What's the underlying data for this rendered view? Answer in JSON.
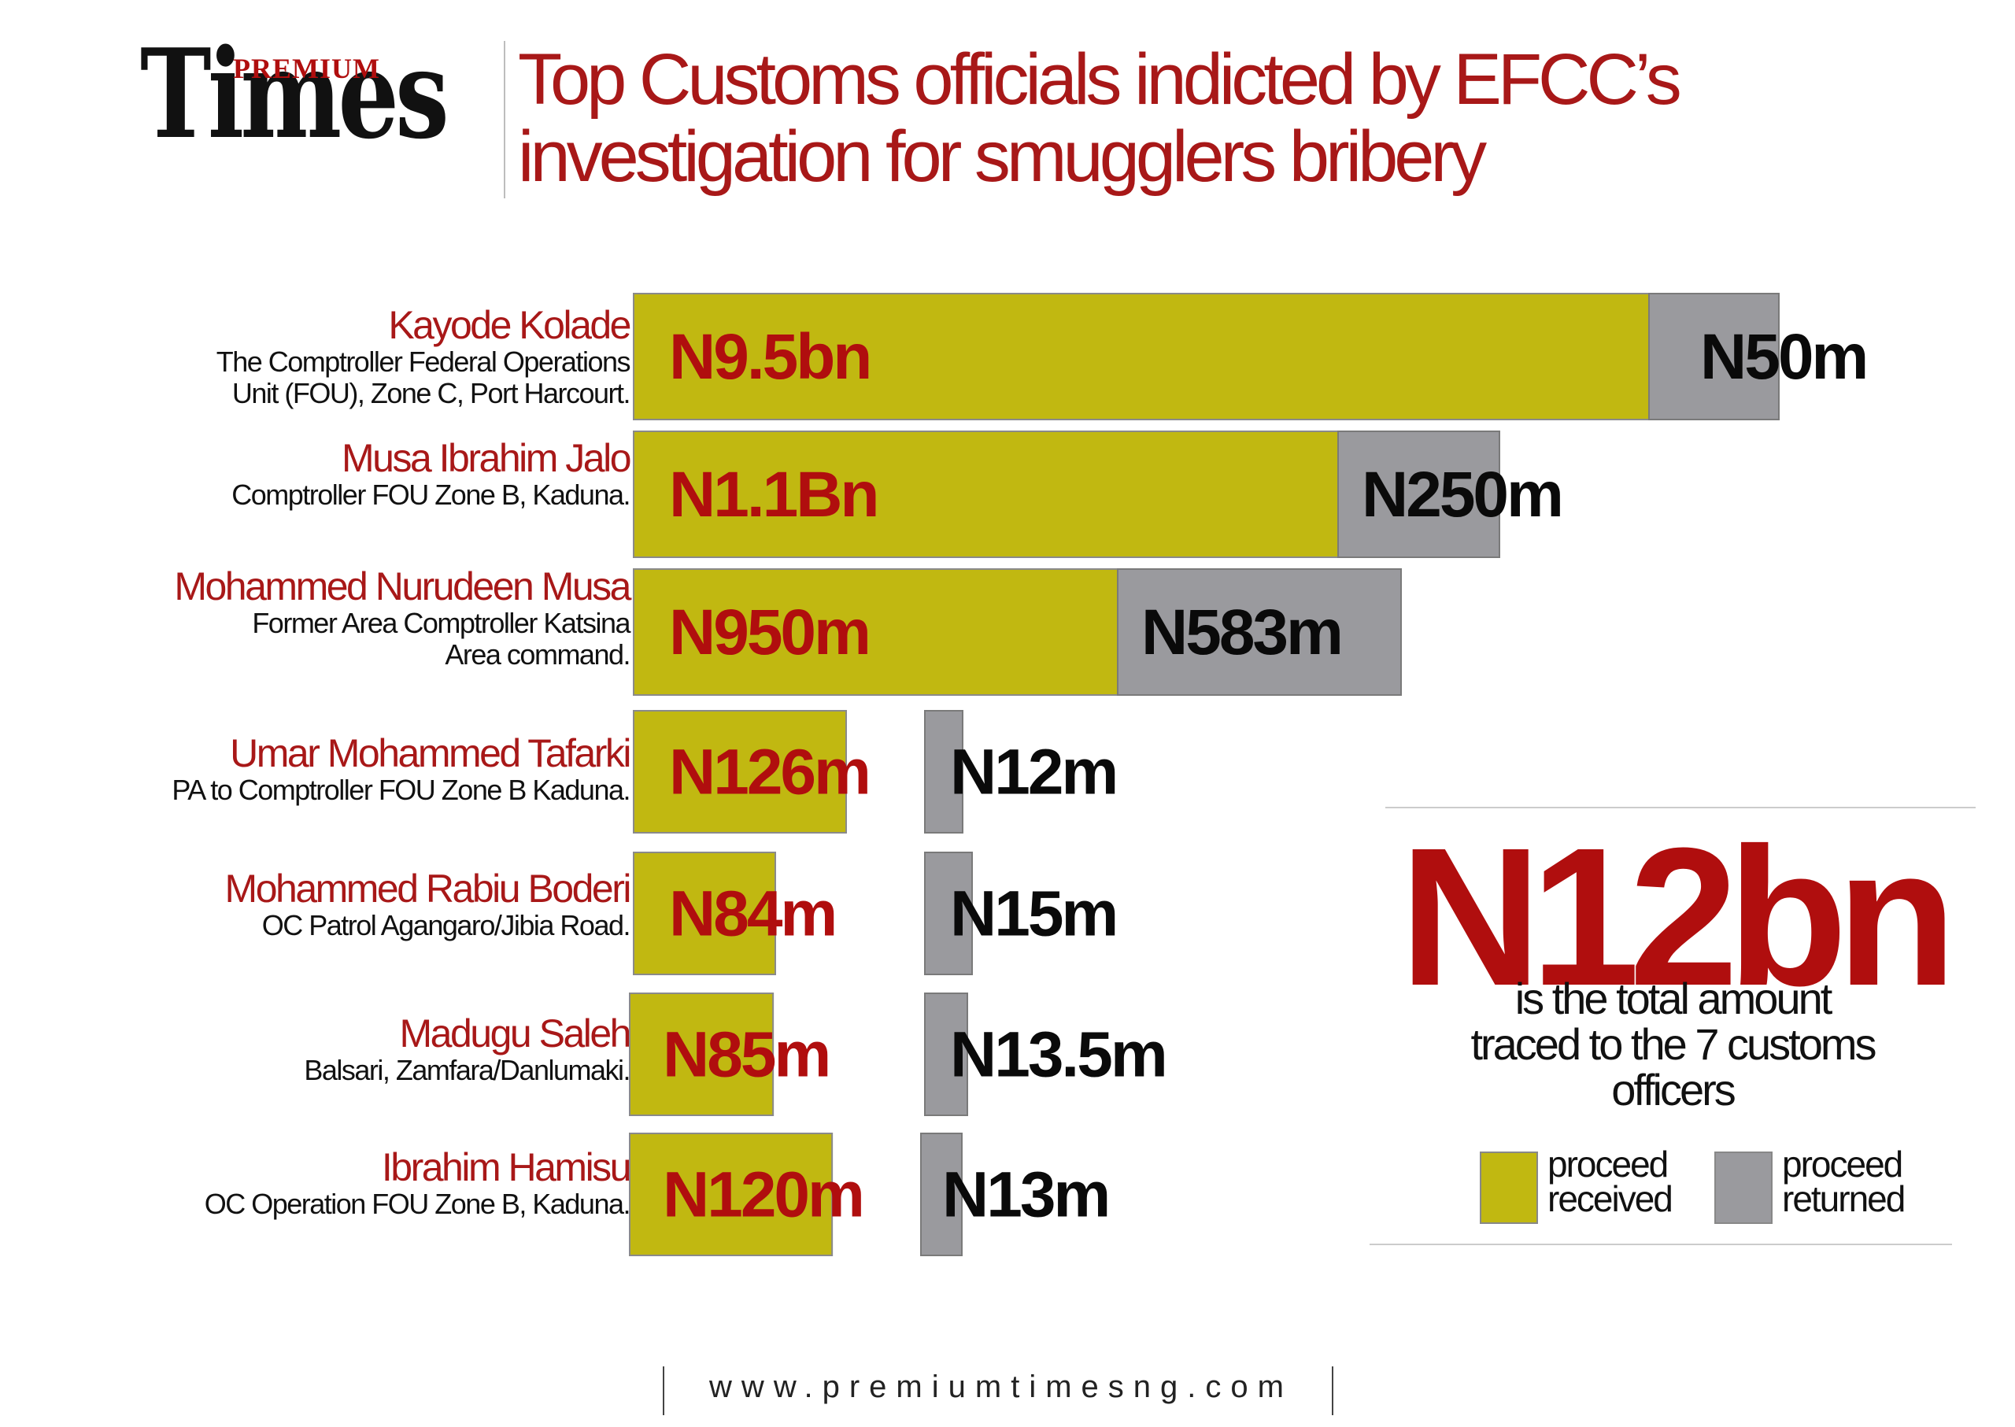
{
  "brand": {
    "premium": "PREMIUM",
    "times": "Times"
  },
  "title_lines": [
    "Top Customs officials indicted by EFCC’s",
    "investigation for smugglers bribery"
  ],
  "colors": {
    "received": "#c1b811",
    "returned": "#9a9a9e",
    "accent_red": "#a81818",
    "value_red": "#b00e0e",
    "value_black": "#0a0a0a"
  },
  "chart_data": {
    "type": "bar",
    "orientation": "horizontal",
    "stacked": false,
    "units": "Naira (millions)",
    "legend_position": "bottom-right",
    "grid": false,
    "categories": [
      "Kayode Kolade",
      "Musa Ibrahim Jalo",
      "Mohammed Nurudeen Musa",
      "Umar Mohammed Tafarki",
      "Mohammed Rabiu Boderi",
      "Madugu Saleh",
      "Ibrahim Hamisu"
    ],
    "descriptions": [
      [
        "The Comptroller Federal Operations",
        "Unit (FOU), Zone C, Port Harcourt."
      ],
      [
        "Comptroller FOU Zone B, Kaduna."
      ],
      [
        "Former Area Comptroller Katsina",
        "Area command."
      ],
      [
        "PA to Comptroller FOU Zone B Kaduna."
      ],
      [
        "OC Patrol Agangaro/Jibia Road."
      ],
      [
        "Balsari, Zamfara/Danlumaki."
      ],
      [
        "OC Operation FOU Zone B, Kaduna."
      ]
    ],
    "series": [
      {
        "name": "proceed received",
        "values": [
          9500,
          1100,
          950,
          126,
          84,
          85,
          120
        ],
        "labels": [
          "N9.5bn",
          "N1.1Bn",
          "N950m",
          "N126m",
          "N84m",
          "N85m",
          "N120m"
        ]
      },
      {
        "name": "proceed returned",
        "values": [
          50,
          250,
          583,
          12,
          15,
          13.5,
          13
        ],
        "labels": [
          "N50m",
          "N250m",
          "N583m",
          "N12m",
          "N15m",
          "N13.5m",
          "N13m"
        ]
      }
    ]
  },
  "total": {
    "amount": "N12bn",
    "caption_lines": [
      "is the total amount",
      "traced to the 7 customs",
      "officers"
    ]
  },
  "legend": [
    {
      "text": "proceed\nreceived",
      "color": "#c1b811"
    },
    {
      "text": "proceed\nreturned",
      "color": "#9a9a9e"
    }
  ],
  "footer": {
    "url": "www.premiumtimesng.com"
  }
}
